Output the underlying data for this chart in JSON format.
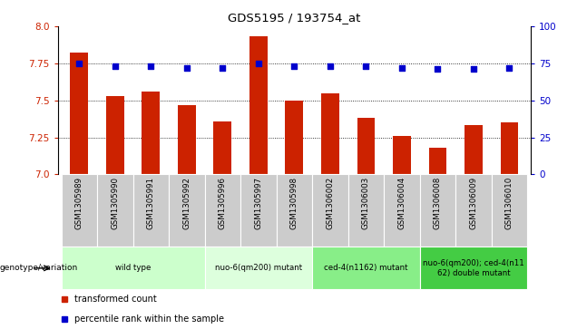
{
  "title": "GDS5195 / 193754_at",
  "samples": [
    "GSM1305989",
    "GSM1305990",
    "GSM1305991",
    "GSM1305992",
    "GSM1305996",
    "GSM1305997",
    "GSM1305998",
    "GSM1306002",
    "GSM1306003",
    "GSM1306004",
    "GSM1306008",
    "GSM1306009",
    "GSM1306010"
  ],
  "bar_values": [
    7.82,
    7.53,
    7.56,
    7.47,
    7.36,
    7.93,
    7.5,
    7.55,
    7.38,
    7.26,
    7.18,
    7.33,
    7.35
  ],
  "percentile_values": [
    75,
    73,
    73,
    72,
    72,
    75,
    73,
    73,
    73,
    72,
    71,
    71,
    72
  ],
  "ylim": [
    7.0,
    8.0
  ],
  "y2lim": [
    0,
    100
  ],
  "yticks": [
    7.0,
    7.25,
    7.5,
    7.75,
    8.0
  ],
  "y2ticks": [
    0,
    25,
    50,
    75,
    100
  ],
  "bar_color": "#cc2200",
  "dot_color": "#0000cc",
  "bg_color": "#ffffff",
  "genotype_groups": [
    {
      "label": "wild type",
      "indices": [
        0,
        1,
        2,
        3
      ],
      "color": "#ccffcc"
    },
    {
      "label": "nuo-6(qm200) mutant",
      "indices": [
        4,
        5,
        6
      ],
      "color": "#ddffdd"
    },
    {
      "label": "ced-4(n1162) mutant",
      "indices": [
        7,
        8,
        9
      ],
      "color": "#88ee88"
    },
    {
      "label": "nuo-6(qm200); ced-4(n11\n62) double mutant",
      "indices": [
        10,
        11,
        12
      ],
      "color": "#44cc44"
    }
  ],
  "legend_items": [
    {
      "label": "transformed count",
      "color": "#cc2200"
    },
    {
      "label": "percentile rank within the sample",
      "color": "#0000cc"
    }
  ],
  "cell_bg_color": "#cccccc",
  "cell_edge_color": "#ffffff"
}
